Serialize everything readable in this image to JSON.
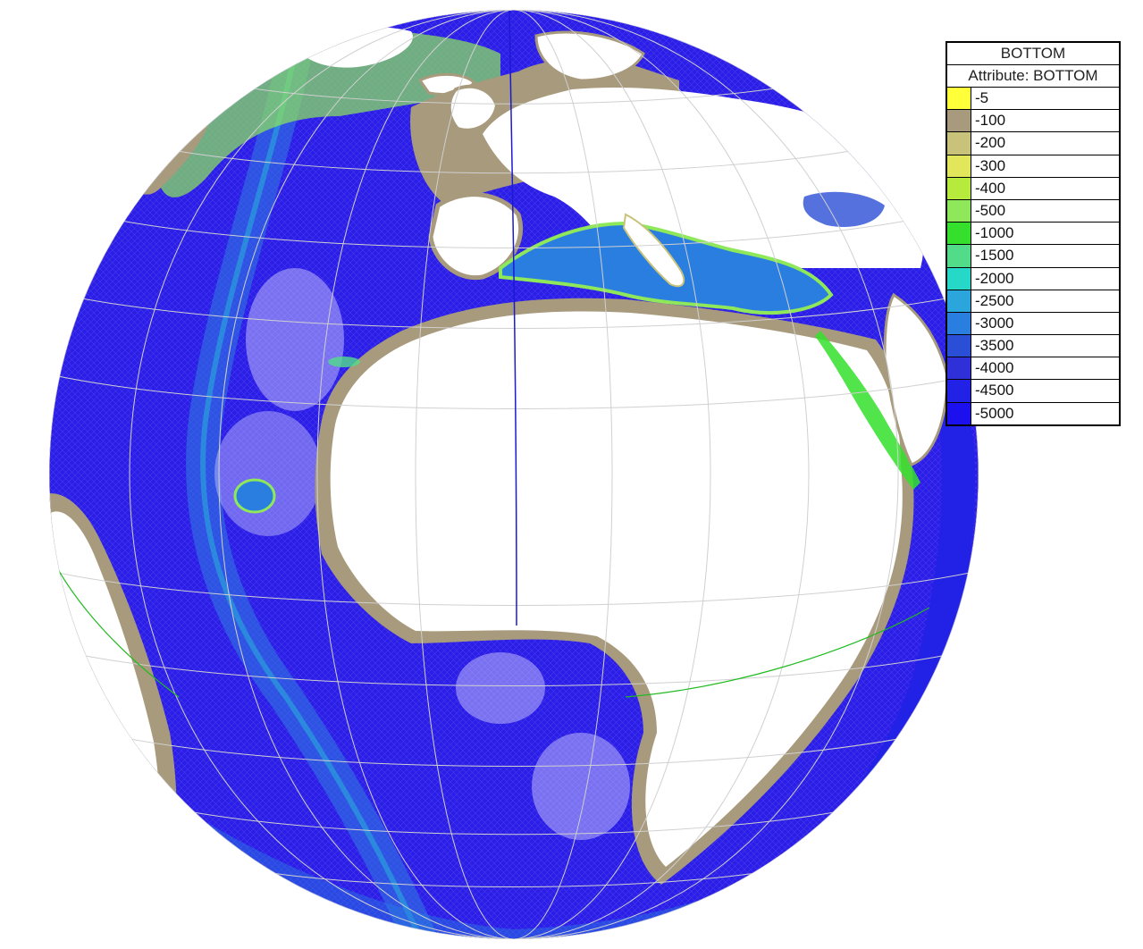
{
  "legend": {
    "title": "BOTTOM",
    "subtitle": "Attribute: BOTTOM",
    "entries": [
      {
        "label": "-5",
        "color": "#ffff3a"
      },
      {
        "label": "-100",
        "color": "#a89a7c"
      },
      {
        "label": "-200",
        "color": "#c8c27a"
      },
      {
        "label": "-300",
        "color": "#e2e65a"
      },
      {
        "label": "-400",
        "color": "#b6ea3c"
      },
      {
        "label": "-500",
        "color": "#8ee85a"
      },
      {
        "label": "-1000",
        "color": "#34e02c"
      },
      {
        "label": "-1500",
        "color": "#52dc8a"
      },
      {
        "label": "-2000",
        "color": "#26d8c8"
      },
      {
        "label": "-2500",
        "color": "#2aa6dc"
      },
      {
        "label": "-3000",
        "color": "#2a7ee0"
      },
      {
        "label": "-3500",
        "color": "#2a4ed6"
      },
      {
        "label": "-4000",
        "color": "#3030d8"
      },
      {
        "label": "-4500",
        "color": "#2222e6"
      },
      {
        "label": "-5000",
        "color": "#1c10ee"
      }
    ]
  },
  "map": {
    "ocean_color": "#2a1ee8",
    "land_color": "#ffffff",
    "shelf_color": "#a89a7c",
    "graticule_color": "#d0d0d0",
    "equator_color": "#22bb22",
    "meridian_color": "#1a1ad0"
  }
}
